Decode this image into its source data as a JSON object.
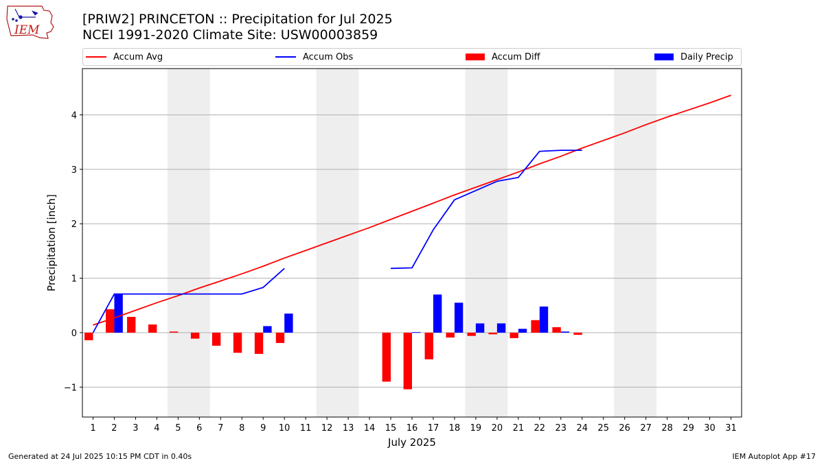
{
  "header": {
    "logo_text": "IEM",
    "title_line1": "[PRIW2] PRINCETON :: Precipitation for Jul 2025",
    "title_line2": "NCEI 1991-2020 Climate Site: USW00003859"
  },
  "legend": {
    "accum_avg": "Accum Avg",
    "accum_obs": "Accum Obs",
    "accum_diff": "Accum Diff",
    "daily_precip": "Daily Precip"
  },
  "colors": {
    "accum_avg": "#ff0000",
    "accum_obs": "#0000ff",
    "accum_diff": "#ff0000",
    "daily_precip": "#0000ff",
    "weekend_band": "#eeeeee",
    "grid": "#b0b0b0"
  },
  "footer": {
    "left": "Generated at 24 Jul 2025 10:15 PM CDT in 0.40s",
    "right": "IEM Autoplot App #17"
  },
  "chart_data": {
    "type": "bar",
    "xlabel": "July 2025",
    "ylabel": "Precipitation [inch]",
    "xlim": [
      0.5,
      31.5
    ],
    "ylim": [
      -1.55,
      4.85
    ],
    "x_ticks": [
      1,
      2,
      3,
      4,
      5,
      6,
      7,
      8,
      9,
      10,
      11,
      12,
      13,
      14,
      15,
      16,
      17,
      18,
      19,
      20,
      21,
      22,
      23,
      24,
      25,
      26,
      27,
      28,
      29,
      30,
      31
    ],
    "y_ticks": [
      -1,
      0,
      1,
      2,
      3,
      4
    ],
    "y_tick_labels": [
      "−1",
      "0",
      "1",
      "2",
      "3",
      "4"
    ],
    "grid": "horizontal",
    "legend_position": "top",
    "weekend_bands": [
      [
        5,
        6
      ],
      [
        12,
        13
      ],
      [
        19,
        20
      ],
      [
        26,
        27
      ]
    ],
    "days": [
      1,
      2,
      3,
      4,
      5,
      6,
      7,
      8,
      9,
      10,
      11,
      12,
      13,
      14,
      15,
      16,
      17,
      18,
      19,
      20,
      21,
      22,
      23,
      24,
      25,
      26,
      27,
      28,
      29,
      30,
      31
    ],
    "series": [
      {
        "name": "Accum Avg",
        "kind": "line",
        "values": [
          0.14,
          0.27,
          0.41,
          0.55,
          0.68,
          0.82,
          0.95,
          1.08,
          1.22,
          1.37,
          1.51,
          1.65,
          1.79,
          1.93,
          2.08,
          2.23,
          2.38,
          2.53,
          2.67,
          2.81,
          2.95,
          3.1,
          3.24,
          3.39,
          3.53,
          3.67,
          3.82,
          3.96,
          4.09,
          4.22,
          4.36
        ]
      },
      {
        "name": "Accum Obs",
        "kind": "line",
        "values": [
          0.0,
          0.71,
          0.71,
          0.71,
          0.71,
          0.71,
          0.71,
          0.71,
          0.83,
          1.18,
          null,
          null,
          null,
          null,
          1.18,
          1.19,
          1.89,
          2.44,
          2.61,
          2.78,
          2.85,
          3.33,
          3.35,
          3.35,
          null,
          null,
          null,
          null,
          null,
          null,
          null
        ]
      },
      {
        "name": "Accum Diff",
        "kind": "bar",
        "values": [
          -0.14,
          0.43,
          0.29,
          0.15,
          0.02,
          -0.11,
          -0.24,
          -0.37,
          -0.39,
          -0.19,
          null,
          null,
          null,
          null,
          -0.9,
          -1.04,
          -0.49,
          -0.09,
          -0.06,
          -0.03,
          -0.1,
          0.23,
          0.1,
          -0.04,
          null,
          null,
          null,
          null,
          null,
          null,
          null
        ]
      },
      {
        "name": "Daily Precip",
        "kind": "bar",
        "values": [
          0,
          0.71,
          0,
          0,
          0,
          0,
          0,
          0,
          0.12,
          0.35,
          null,
          null,
          null,
          null,
          0,
          0.01,
          0.7,
          0.55,
          0.17,
          0.17,
          0.07,
          0.48,
          0.02,
          0,
          null,
          null,
          null,
          null,
          null,
          null,
          null
        ]
      }
    ]
  }
}
